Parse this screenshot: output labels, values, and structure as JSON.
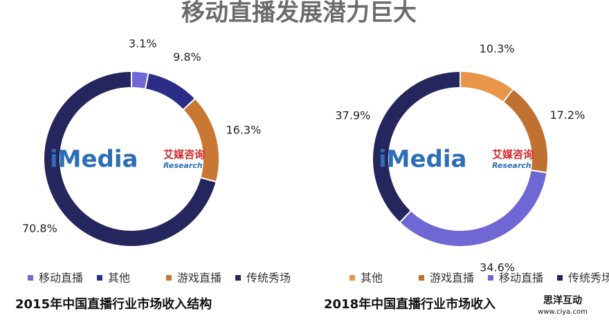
{
  "page_title": "移动直播发展潜力巨大",
  "watermarks": {
    "logo_en": "iMedia",
    "logo_cn": "艾媒咨询",
    "logo_sub": "Research",
    "site_cn": "思洋互动",
    "site_url": "www.ciya.com"
  },
  "chart_data": [
    {
      "type": "donut",
      "title": "2015年中国直播行业市场收入结构",
      "categories": [
        "移动直播",
        "其他",
        "游戏直播",
        "传统秀场"
      ],
      "values": [
        3.1,
        9.8,
        16.3,
        70.8
      ],
      "value_labels": [
        "3.1%",
        "9.8%",
        "16.3%",
        "70.8%"
      ],
      "colors": [
        "#6f67d3",
        "#2b2d86",
        "#c87832",
        "#25265e"
      ]
    },
    {
      "type": "donut",
      "title": "2018年中国直播行业市场收入",
      "categories": [
        "其他",
        "游戏直播",
        "移动直播",
        "传统秀场"
      ],
      "values": [
        10.3,
        17.2,
        34.6,
        37.9
      ],
      "value_labels": [
        "10.3%",
        "17.2%",
        "34.6%",
        "37.9%"
      ],
      "colors": [
        "#e8954a",
        "#c07030",
        "#6f67d3",
        "#25265e"
      ]
    }
  ]
}
